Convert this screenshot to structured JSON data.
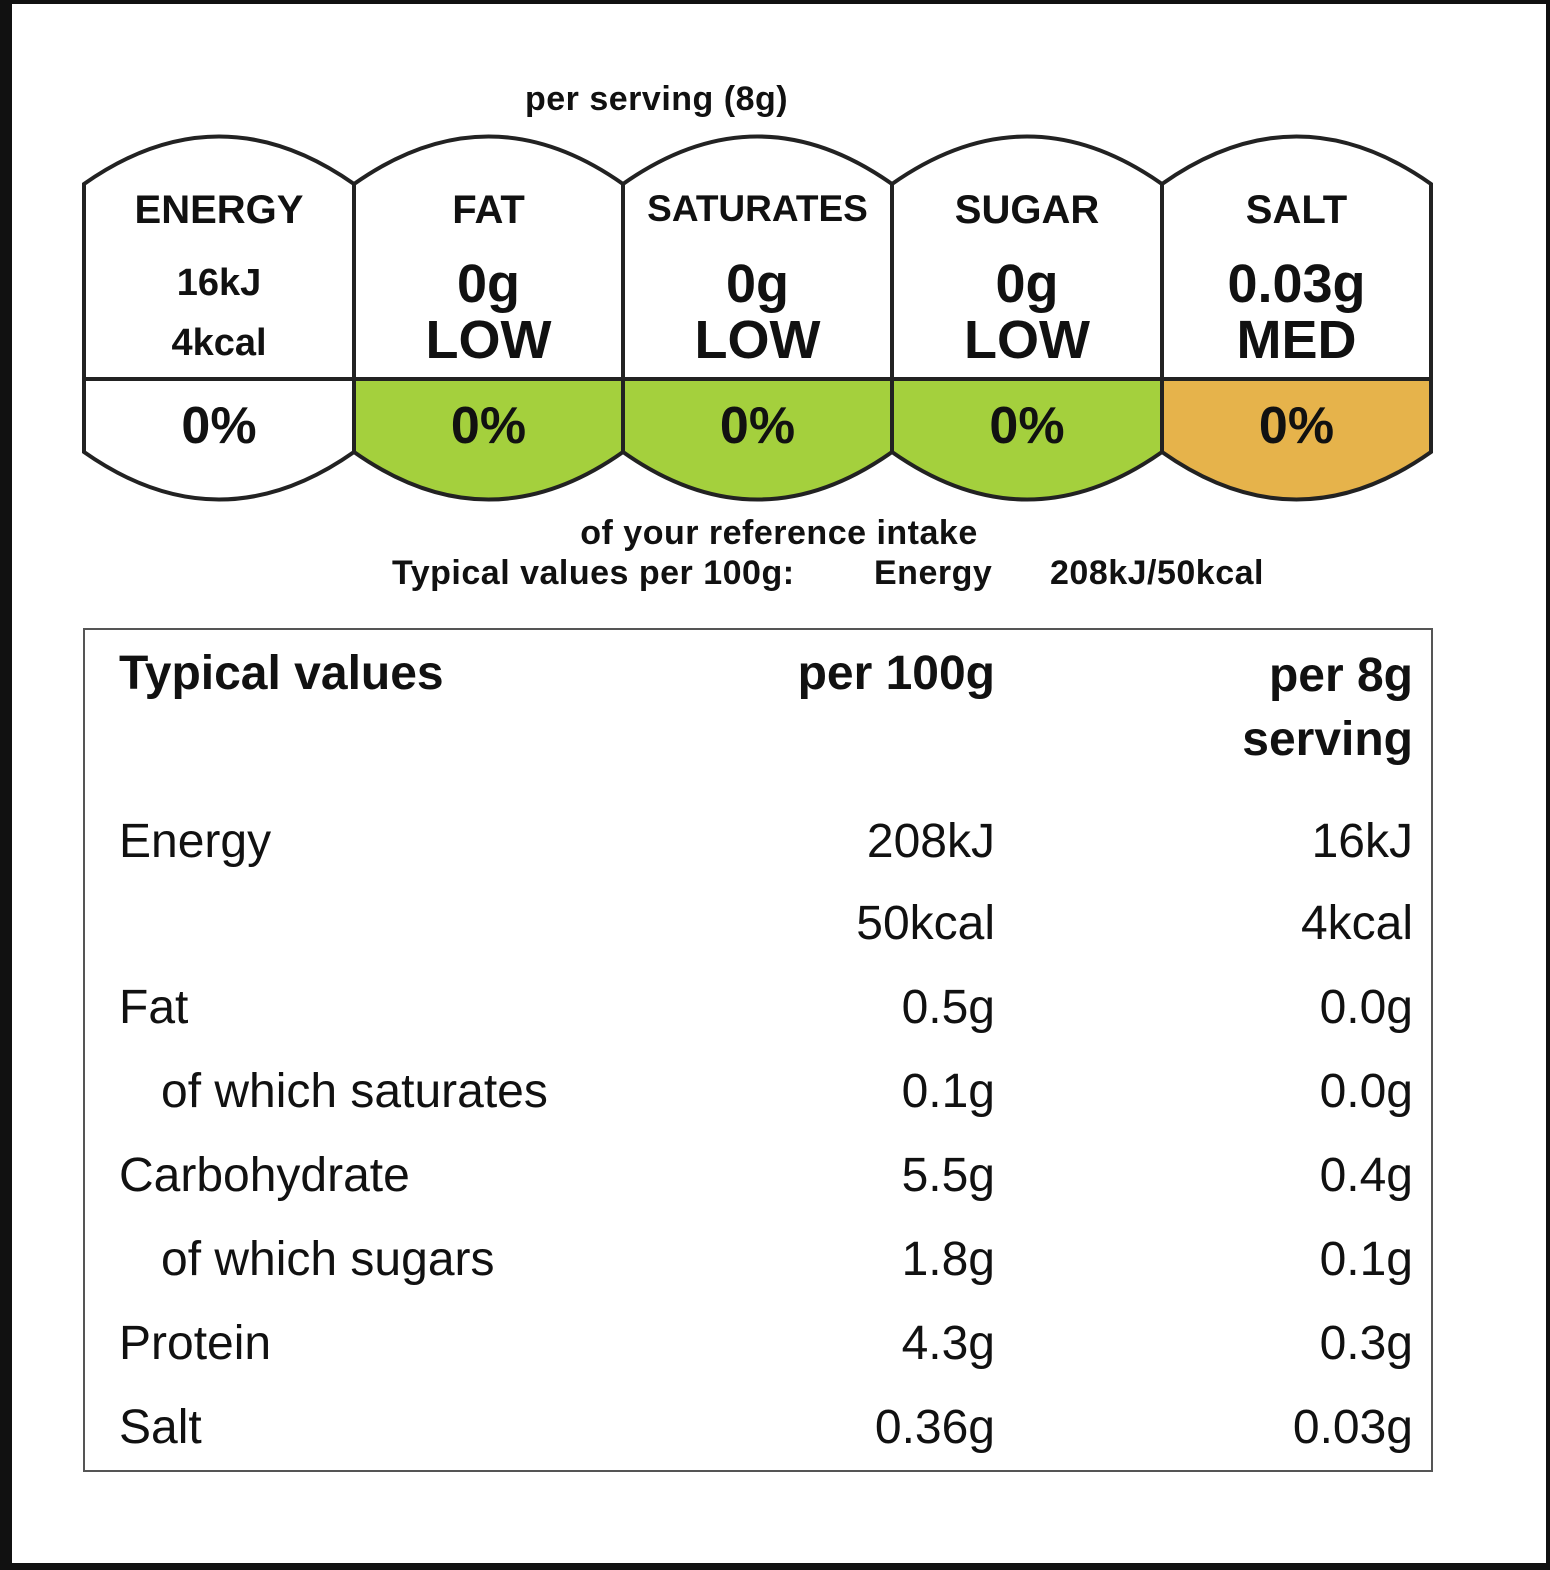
{
  "traffic_light": {
    "per_serving_label": "per serving  (8g)",
    "colors": {
      "low": "#a4d03d",
      "medium": "#e6b34b",
      "none": "#ffffff",
      "border": "#222222"
    },
    "columns": [
      {
        "name": "ENERGY",
        "line1": "16kJ",
        "line2": "4kcal",
        "percent": "0%",
        "level": "none"
      },
      {
        "name": "FAT",
        "line1": "0g",
        "line2": "LOW",
        "percent": "0%",
        "level": "low"
      },
      {
        "name": "SATURATES",
        "line1": "0g",
        "line2": "LOW",
        "percent": "0%",
        "level": "low"
      },
      {
        "name": "SUGAR",
        "line1": "0g",
        "line2": "LOW",
        "percent": "0%",
        "level": "low"
      },
      {
        "name": "SALT",
        "line1": "0.03g",
        "line2": "MED",
        "percent": "0%",
        "level": "medium"
      }
    ],
    "reference_intake": "of your reference intake",
    "typical_label": "Typical values per 100g:",
    "typical_energy_label": "Energy",
    "typical_energy_value": "208kJ/50kcal"
  },
  "nutrition_table": {
    "headers": {
      "label": "Typical values",
      "per100": "per 100g",
      "serving_line1": "per 8g",
      "serving_line2": "serving"
    },
    "rows": [
      {
        "label": "Energy",
        "per100": "208kJ",
        "serving": "16kJ",
        "indent": false
      },
      {
        "label": "",
        "per100": "50kcal",
        "serving": "4kcal",
        "indent": false
      },
      {
        "label": "Fat",
        "per100": "0.5g",
        "serving": "0.0g",
        "indent": false
      },
      {
        "label": "of which saturates",
        "per100": "0.1g",
        "serving": "0.0g",
        "indent": true
      },
      {
        "label": "Carbohydrate",
        "per100": "5.5g",
        "serving": "0.4g",
        "indent": false
      },
      {
        "label": "of which sugars",
        "per100": "1.8g",
        "serving": "0.1g",
        "indent": true
      },
      {
        "label": "Protein",
        "per100": "4.3g",
        "serving": "0.3g",
        "indent": false
      },
      {
        "label": "Salt",
        "per100": "0.36g",
        "serving": "0.03g",
        "indent": false
      }
    ]
  }
}
